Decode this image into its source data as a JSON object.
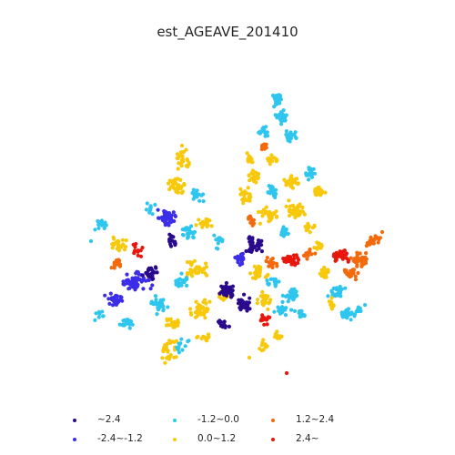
{
  "title": "est_AGEAVE_201410",
  "legend": [
    {
      "label": "~2.4",
      "color": "#2a0a8c"
    },
    {
      "label": "-2.4~-1.2",
      "color": "#3c2ee8"
    },
    {
      "label": "-1.2~0.0",
      "color": "#2ec6ee"
    },
    {
      "label": "0.0~1.2",
      "color": "#f8c80a"
    },
    {
      "label": "1.2~2.4",
      "color": "#f26a0c"
    },
    {
      "label": "2.4~",
      "color": "#e8160c"
    }
  ]
}
